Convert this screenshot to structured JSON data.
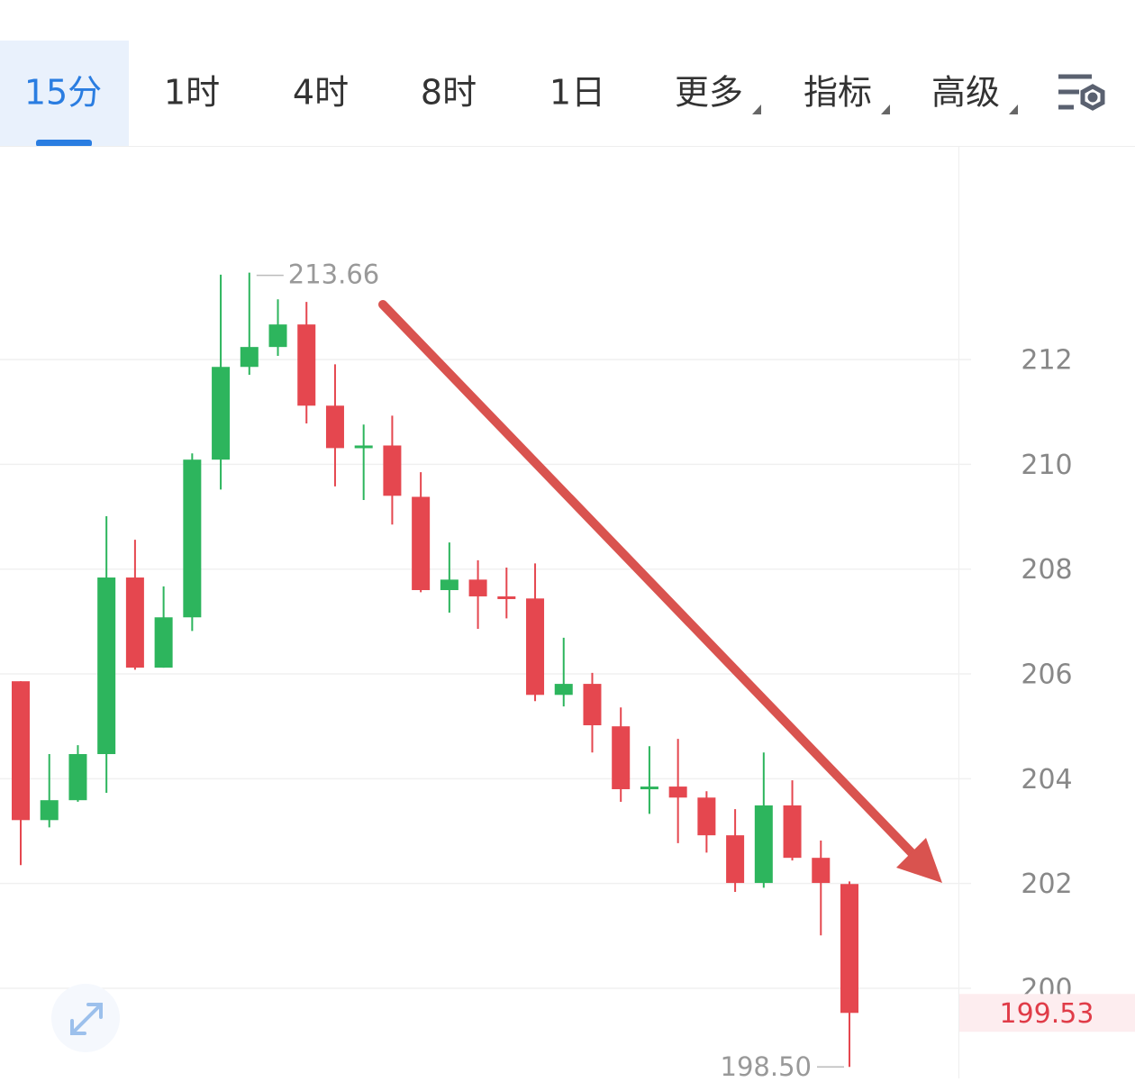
{
  "toolbar": {
    "tabs": [
      "15分",
      "1时",
      "4时",
      "8时",
      "1日",
      "更多",
      "指标",
      "高级"
    ],
    "active": 0
  },
  "chart_data": {
    "type": "candlestick",
    "open": [
      205.86,
      203.21,
      203.59,
      204.47,
      207.84,
      206.12,
      207.08,
      210.09,
      211.86,
      212.24,
      212.67,
      211.12,
      210.31,
      210.36,
      209.38,
      207.6,
      207.8,
      207.48,
      207.44,
      205.6,
      205.81,
      205.0,
      203.8,
      203.85,
      203.64,
      202.92,
      202.01,
      203.49,
      202.49,
      201.99
    ],
    "high": [
      205.86,
      204.47,
      204.64,
      209.01,
      208.56,
      207.67,
      210.21,
      213.62,
      213.66,
      213.15,
      213.1,
      211.91,
      210.76,
      210.93,
      209.85,
      208.51,
      208.17,
      208.03,
      208.11,
      206.69,
      206.02,
      205.36,
      204.62,
      204.76,
      203.76,
      203.42,
      204.5,
      203.97,
      202.82,
      202.04
    ],
    "low": [
      202.35,
      203.07,
      203.56,
      203.73,
      206.08,
      206.12,
      206.82,
      209.52,
      211.71,
      212.07,
      210.78,
      209.58,
      209.32,
      208.85,
      207.56,
      207.17,
      206.86,
      207.06,
      205.48,
      205.38,
      204.5,
      203.56,
      203.33,
      202.77,
      202.59,
      201.84,
      201.92,
      202.44,
      201.01,
      198.5
    ],
    "close": [
      203.21,
      203.59,
      204.47,
      207.84,
      206.12,
      207.08,
      210.09,
      211.86,
      212.24,
      212.67,
      211.12,
      210.31,
      210.36,
      209.4,
      207.6,
      207.8,
      207.48,
      207.44,
      205.6,
      205.81,
      205.02,
      203.8,
      203.85,
      203.64,
      202.92,
      202.01,
      203.49,
      202.49,
      202.01,
      199.53
    ],
    "up_color": "#2db55d",
    "down_color": "#e5474f",
    "ylim": [
      198.28,
      216.06
    ],
    "yticks": [
      212,
      210,
      208,
      206,
      204,
      202,
      200
    ],
    "grid": true,
    "annotations": [
      "213.66",
      "198.50"
    ],
    "last_price_label": "199.53"
  }
}
